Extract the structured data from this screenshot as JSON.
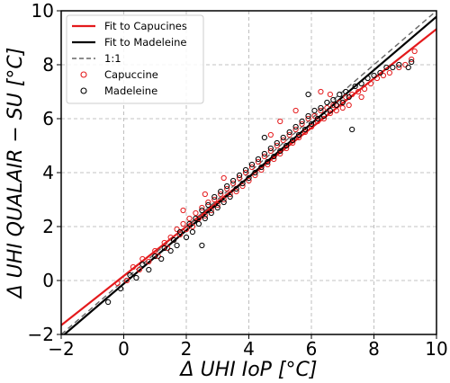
{
  "chart_data": {
    "type": "scatter",
    "xlabel": "Δ UHI IoP [°C]",
    "ylabel": "Δ UHI QUALAIR − SU [°C]",
    "xlim": [
      -2,
      10
    ],
    "ylim": [
      -2,
      10
    ],
    "xticks": [
      "−2",
      "0",
      "2",
      "4",
      "6",
      "8",
      "10"
    ],
    "yticks": [
      "−2",
      "0",
      "2",
      "4",
      "6",
      "8",
      "10"
    ],
    "grid": true,
    "legend_position": "top-left",
    "lines": [
      {
        "name": "Fit to Capucines",
        "color": "#e41a1c",
        "slope": 0.915,
        "intercept": 0.17,
        "style": "solid"
      },
      {
        "name": "Fit to Madeleine",
        "color": "#000000",
        "slope": 0.99,
        "intercept": -0.12,
        "style": "solid"
      },
      {
        "name": "1:1",
        "color": "#666666",
        "slope": 1.0,
        "intercept": 0.0,
        "style": "dashed"
      }
    ],
    "series": [
      {
        "name": "Capuccine",
        "color": "#e41a1c",
        "points": [
          [
            -0.2,
            -0.1
          ],
          [
            0.1,
            0.0
          ],
          [
            0.3,
            0.5
          ],
          [
            0.5,
            0.4
          ],
          [
            0.6,
            0.8
          ],
          [
            0.8,
            0.7
          ],
          [
            1.0,
            1.1
          ],
          [
            1.1,
            0.9
          ],
          [
            1.3,
            1.4
          ],
          [
            1.4,
            1.2
          ],
          [
            1.5,
            1.6
          ],
          [
            1.6,
            1.5
          ],
          [
            1.7,
            1.9
          ],
          [
            1.8,
            1.7
          ],
          [
            1.9,
            2.1
          ],
          [
            2.0,
            1.9
          ],
          [
            2.1,
            2.3
          ],
          [
            2.2,
            2.0
          ],
          [
            2.3,
            2.5
          ],
          [
            2.4,
            2.3
          ],
          [
            2.5,
            2.7
          ],
          [
            2.6,
            2.4
          ],
          [
            2.7,
            2.9
          ],
          [
            2.8,
            2.6
          ],
          [
            2.9,
            3.0
          ],
          [
            3.0,
            2.8
          ],
          [
            3.1,
            3.2
          ],
          [
            3.2,
            3.0
          ],
          [
            3.3,
            3.4
          ],
          [
            3.4,
            3.2
          ],
          [
            3.5,
            3.6
          ],
          [
            3.6,
            3.3
          ],
          [
            3.7,
            3.8
          ],
          [
            3.8,
            3.5
          ],
          [
            3.9,
            4.0
          ],
          [
            4.0,
            3.7
          ],
          [
            4.1,
            4.2
          ],
          [
            4.2,
            3.9
          ],
          [
            4.3,
            4.4
          ],
          [
            4.4,
            4.1
          ],
          [
            4.5,
            4.6
          ],
          [
            4.6,
            4.3
          ],
          [
            4.7,
            4.8
          ],
          [
            4.8,
            4.5
          ],
          [
            4.9,
            5.0
          ],
          [
            5.0,
            4.7
          ],
          [
            5.1,
            5.2
          ],
          [
            5.2,
            4.9
          ],
          [
            5.3,
            5.4
          ],
          [
            5.4,
            5.1
          ],
          [
            5.5,
            5.6
          ],
          [
            5.6,
            5.3
          ],
          [
            5.7,
            5.8
          ],
          [
            5.8,
            5.5
          ],
          [
            5.9,
            6.0
          ],
          [
            6.0,
            5.7
          ],
          [
            6.1,
            6.1
          ],
          [
            6.2,
            5.9
          ],
          [
            6.3,
            6.3
          ],
          [
            6.4,
            6.0
          ],
          [
            6.5,
            6.4
          ],
          [
            6.6,
            6.2
          ],
          [
            6.7,
            6.5
          ],
          [
            6.8,
            6.3
          ],
          [
            6.9,
            6.6
          ],
          [
            7.0,
            6.4
          ],
          [
            7.1,
            6.8
          ],
          [
            7.2,
            6.5
          ],
          [
            7.3,
            6.9
          ],
          [
            7.5,
            7.0
          ],
          [
            7.7,
            7.1
          ],
          [
            7.9,
            7.3
          ],
          [
            8.1,
            7.5
          ],
          [
            8.3,
            7.6
          ],
          [
            8.5,
            7.7
          ],
          [
            8.8,
            7.9
          ],
          [
            9.0,
            8.0
          ],
          [
            9.2,
            8.2
          ],
          [
            9.3,
            8.5
          ],
          [
            7.6,
            6.8
          ],
          [
            5.5,
            6.3
          ],
          [
            5.0,
            5.9
          ],
          [
            4.7,
            5.4
          ],
          [
            3.2,
            3.8
          ],
          [
            2.6,
            3.2
          ],
          [
            1.9,
            2.6
          ],
          [
            6.3,
            7.0
          ],
          [
            6.6,
            6.9
          ]
        ]
      },
      {
        "name": "Madeleine",
        "color": "#000000",
        "points": [
          [
            -0.5,
            -0.8
          ],
          [
            -0.1,
            -0.3
          ],
          [
            0.2,
            0.2
          ],
          [
            0.4,
            0.1
          ],
          [
            0.6,
            0.6
          ],
          [
            0.8,
            0.4
          ],
          [
            1.0,
            0.9
          ],
          [
            1.2,
            0.8
          ],
          [
            1.3,
            1.2
          ],
          [
            1.5,
            1.1
          ],
          [
            1.6,
            1.5
          ],
          [
            1.7,
            1.3
          ],
          [
            1.8,
            1.8
          ],
          [
            2.0,
            1.6
          ],
          [
            2.1,
            2.1
          ],
          [
            2.2,
            1.8
          ],
          [
            2.3,
            2.3
          ],
          [
            2.4,
            2.1
          ],
          [
            2.5,
            2.6
          ],
          [
            2.6,
            2.3
          ],
          [
            2.7,
            2.8
          ],
          [
            2.8,
            2.5
          ],
          [
            2.9,
            3.1
          ],
          [
            3.0,
            2.7
          ],
          [
            3.1,
            3.3
          ],
          [
            3.2,
            2.9
          ],
          [
            3.3,
            3.5
          ],
          [
            3.4,
            3.1
          ],
          [
            3.5,
            3.7
          ],
          [
            3.6,
            3.4
          ],
          [
            3.7,
            3.9
          ],
          [
            3.8,
            3.6
          ],
          [
            3.9,
            4.1
          ],
          [
            4.0,
            3.8
          ],
          [
            4.1,
            4.3
          ],
          [
            4.2,
            4.0
          ],
          [
            4.3,
            4.5
          ],
          [
            4.4,
            4.2
          ],
          [
            4.5,
            4.7
          ],
          [
            4.6,
            4.4
          ],
          [
            4.7,
            4.9
          ],
          [
            4.8,
            4.6
          ],
          [
            4.9,
            5.1
          ],
          [
            5.0,
            4.8
          ],
          [
            5.1,
            5.3
          ],
          [
            5.2,
            5.0
          ],
          [
            5.3,
            5.5
          ],
          [
            5.4,
            5.2
          ],
          [
            5.5,
            5.7
          ],
          [
            5.6,
            5.4
          ],
          [
            5.7,
            5.9
          ],
          [
            5.8,
            5.6
          ],
          [
            5.9,
            6.1
          ],
          [
            6.0,
            5.8
          ],
          [
            6.1,
            6.3
          ],
          [
            6.2,
            6.0
          ],
          [
            6.3,
            6.4
          ],
          [
            6.4,
            6.1
          ],
          [
            6.5,
            6.6
          ],
          [
            6.6,
            6.3
          ],
          [
            6.7,
            6.7
          ],
          [
            6.8,
            6.5
          ],
          [
            6.9,
            6.9
          ],
          [
            7.0,
            6.6
          ],
          [
            7.1,
            7.0
          ],
          [
            7.2,
            6.8
          ],
          [
            7.4,
            7.2
          ],
          [
            7.6,
            7.3
          ],
          [
            7.8,
            7.5
          ],
          [
            8.0,
            7.6
          ],
          [
            8.2,
            7.7
          ],
          [
            8.4,
            7.9
          ],
          [
            8.6,
            7.9
          ],
          [
            8.8,
            8.0
          ],
          [
            9.1,
            7.9
          ],
          [
            9.2,
            8.1
          ],
          [
            7.3,
            5.6
          ],
          [
            2.5,
            1.3
          ],
          [
            5.9,
            6.9
          ],
          [
            4.5,
            5.3
          ]
        ]
      }
    ]
  }
}
